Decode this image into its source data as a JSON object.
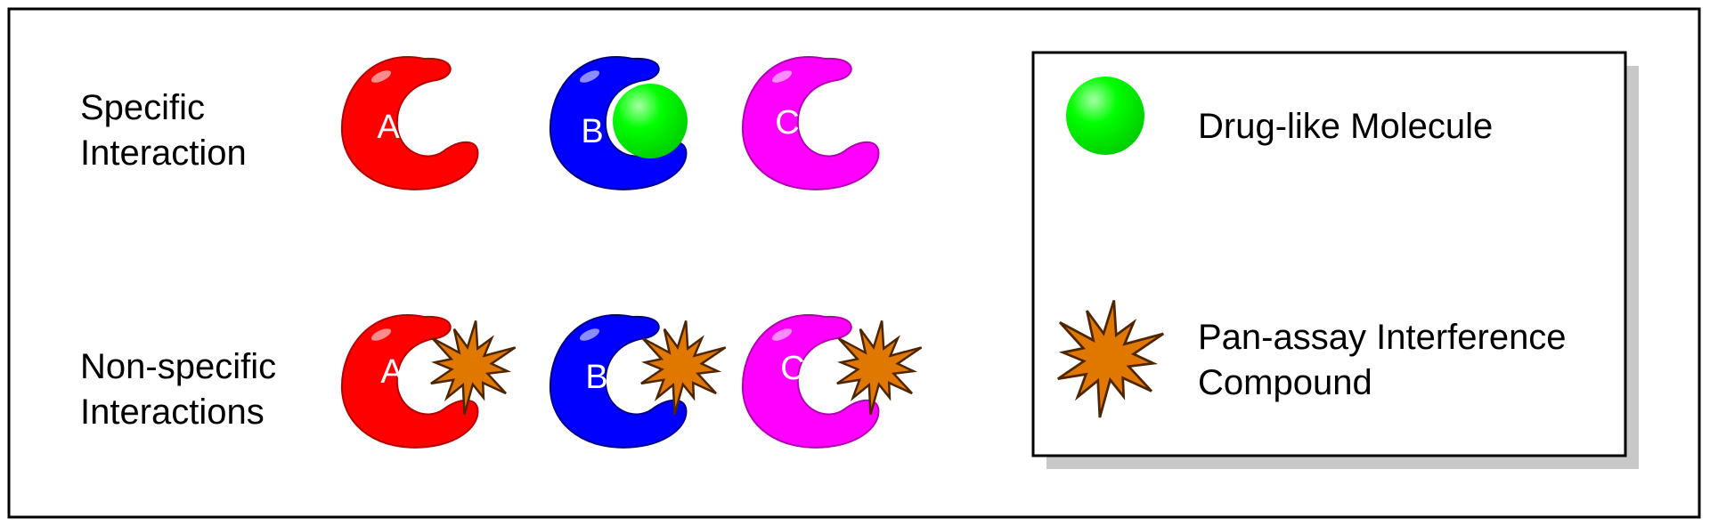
{
  "rows": {
    "specific": {
      "line1": "Specific",
      "line2": "Interaction"
    },
    "nonspecific": {
      "line1": "Non-specific",
      "line2": "Interactions"
    }
  },
  "proteins": [
    {
      "label": "A",
      "color": "#ff0000"
    },
    {
      "label": "B",
      "color": "#0000ff"
    },
    {
      "label": "C",
      "color": "#ff00ff"
    }
  ],
  "specific_binding": {
    "bound_protein": "B",
    "molecule_color": "#00ff00"
  },
  "legend": {
    "drug": {
      "label": "Drug-like Molecule",
      "color": "#00ff00",
      "icon": "green-sphere-icon"
    },
    "pains": {
      "line1": "Pan-assay Interference",
      "line2": "Compound",
      "color": "#e07800",
      "icon": "starburst-icon"
    }
  }
}
